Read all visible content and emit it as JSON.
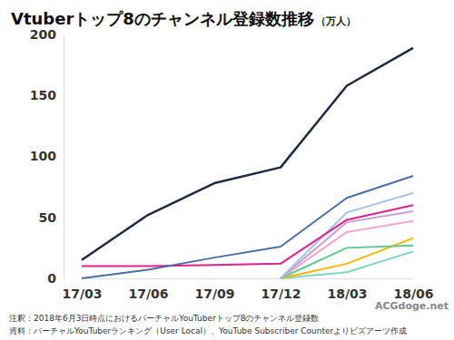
{
  "chart_data": {
    "type": "line",
    "title": "Vtuberトップ8のチャンネル登録数推移",
    "subtitle": "（万人）",
    "categories": [
      "17/03",
      "17/06",
      "17/09",
      "17/12",
      "18/03",
      "18/06"
    ],
    "series": [
      {
        "color": "#1f2a44",
        "values": [
          15,
          52,
          78,
          91,
          158,
          189
        ]
      },
      {
        "color": "#4a6fa5",
        "values": [
          0,
          7,
          17,
          26,
          66,
          84
        ]
      },
      {
        "color": "#e0218a",
        "values": [
          10,
          10,
          11,
          12,
          48,
          60
        ]
      },
      {
        "color": "#9dc3e6",
        "values": [
          null,
          null,
          null,
          0,
          54,
          70
        ]
      },
      {
        "color": "#c9a0dc",
        "values": [
          null,
          null,
          null,
          0,
          46,
          55
        ]
      },
      {
        "color": "#f4a6c8",
        "values": [
          null,
          null,
          null,
          0,
          38,
          47
        ]
      },
      {
        "color": "#5cc98f",
        "values": [
          null,
          null,
          null,
          0,
          25,
          27
        ]
      },
      {
        "color": "#f5b800",
        "values": [
          null,
          null,
          null,
          0,
          12,
          33
        ]
      },
      {
        "color": "#7fd6c2",
        "values": [
          null,
          null,
          null,
          0,
          5,
          22
        ]
      }
    ],
    "ylim": [
      0,
      200
    ],
    "yticks": [
      0,
      50,
      100,
      150,
      200
    ],
    "grid": false,
    "notes": [
      "注釈：2018年6月3日時点におけるバーチャルYouTuberトップ8のチャンネル登録数",
      "資料：バーチャルYouTuberランキング（User Local）、YouTube Subscriber Counterよりビズアーツ作成"
    ],
    "watermark": "ACGdoge.net"
  }
}
